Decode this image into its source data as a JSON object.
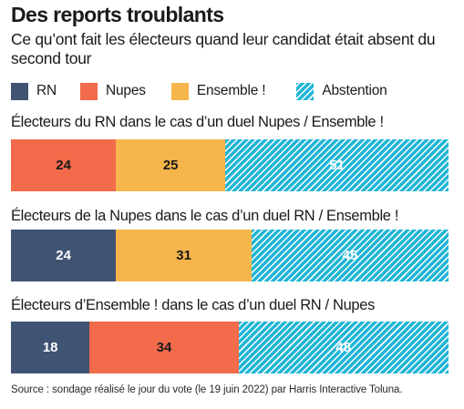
{
  "chart_data": {
    "type": "bar",
    "orientation": "horizontal",
    "stacked": true,
    "title": "Des reports troublants",
    "subtitle": "Ce qu’ont fait les électeurs quand leur candidat était absent du second tour",
    "legend": [
      {
        "key": "rn",
        "name": "RN",
        "color": "#3f5373"
      },
      {
        "key": "nupes",
        "name": "Nupes",
        "color": "#f26b4a"
      },
      {
        "key": "ensemble",
        "name": "Ensemble !",
        "color": "#f7b64b"
      },
      {
        "key": "abstention",
        "name": "Abstention",
        "color": "#20b5d6",
        "pattern": "hatch"
      }
    ],
    "groups": [
      {
        "label": "Électeurs du RN dans le cas d’un duel Nupes / Ensemble !",
        "segments": [
          {
            "key": "nupes",
            "value": 24
          },
          {
            "key": "ensemble",
            "value": 25
          },
          {
            "key": "abstention",
            "value": 51
          }
        ]
      },
      {
        "label": "Électeurs de la Nupes dans le cas d’un duel RN / Ensemble !",
        "segments": [
          {
            "key": "rn",
            "value": 24
          },
          {
            "key": "ensemble",
            "value": 31
          },
          {
            "key": "abstention",
            "value": 45
          }
        ]
      },
      {
        "label": "Électeurs d’Ensemble ! dans le cas d’un duel RN / Nupes",
        "segments": [
          {
            "key": "rn",
            "value": 18
          },
          {
            "key": "nupes",
            "value": 34
          },
          {
            "key": "abstention",
            "value": 48
          }
        ]
      }
    ],
    "xlim": [
      0,
      100
    ],
    "source": "Source : sondage réalisé le jour du vote (le 19 juin 2022) par Harris Interactive Toluna."
  }
}
